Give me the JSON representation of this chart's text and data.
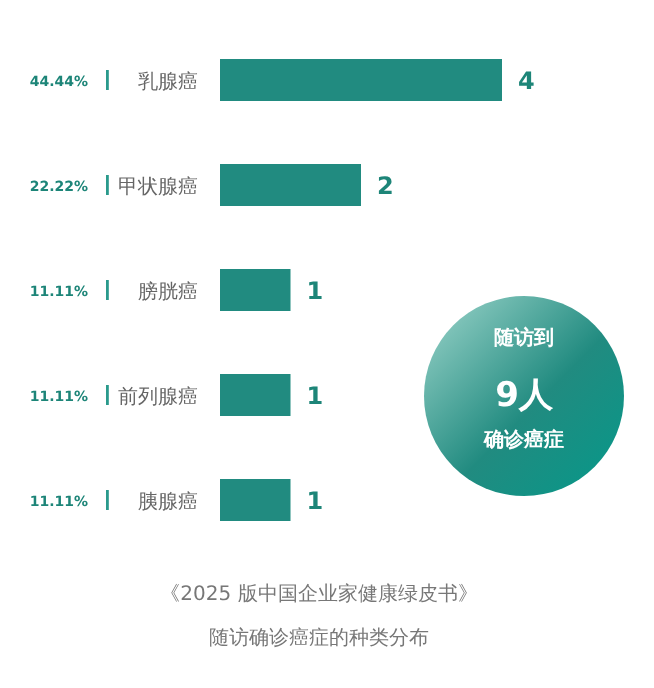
{
  "chart_data": {
    "type": "bar",
    "orientation": "horizontal",
    "title": "《2025 版中国企业家健康绿皮书》",
    "subtitle": "随访确诊癌症的种类分布",
    "categories": [
      "乳腺癌",
      "甲状腺癌",
      "膀胱癌",
      "前列腺癌",
      "胰腺癌"
    ],
    "values": [
      4,
      2,
      1,
      1,
      1
    ],
    "color": "#218b80",
    "data_labels": true,
    "annotations": [
      "44.44%",
      "22.22%",
      "11.11%",
      "11.11%",
      "11.11%",
      "随访到",
      "9人",
      "确诊癌症"
    ]
  }
}
